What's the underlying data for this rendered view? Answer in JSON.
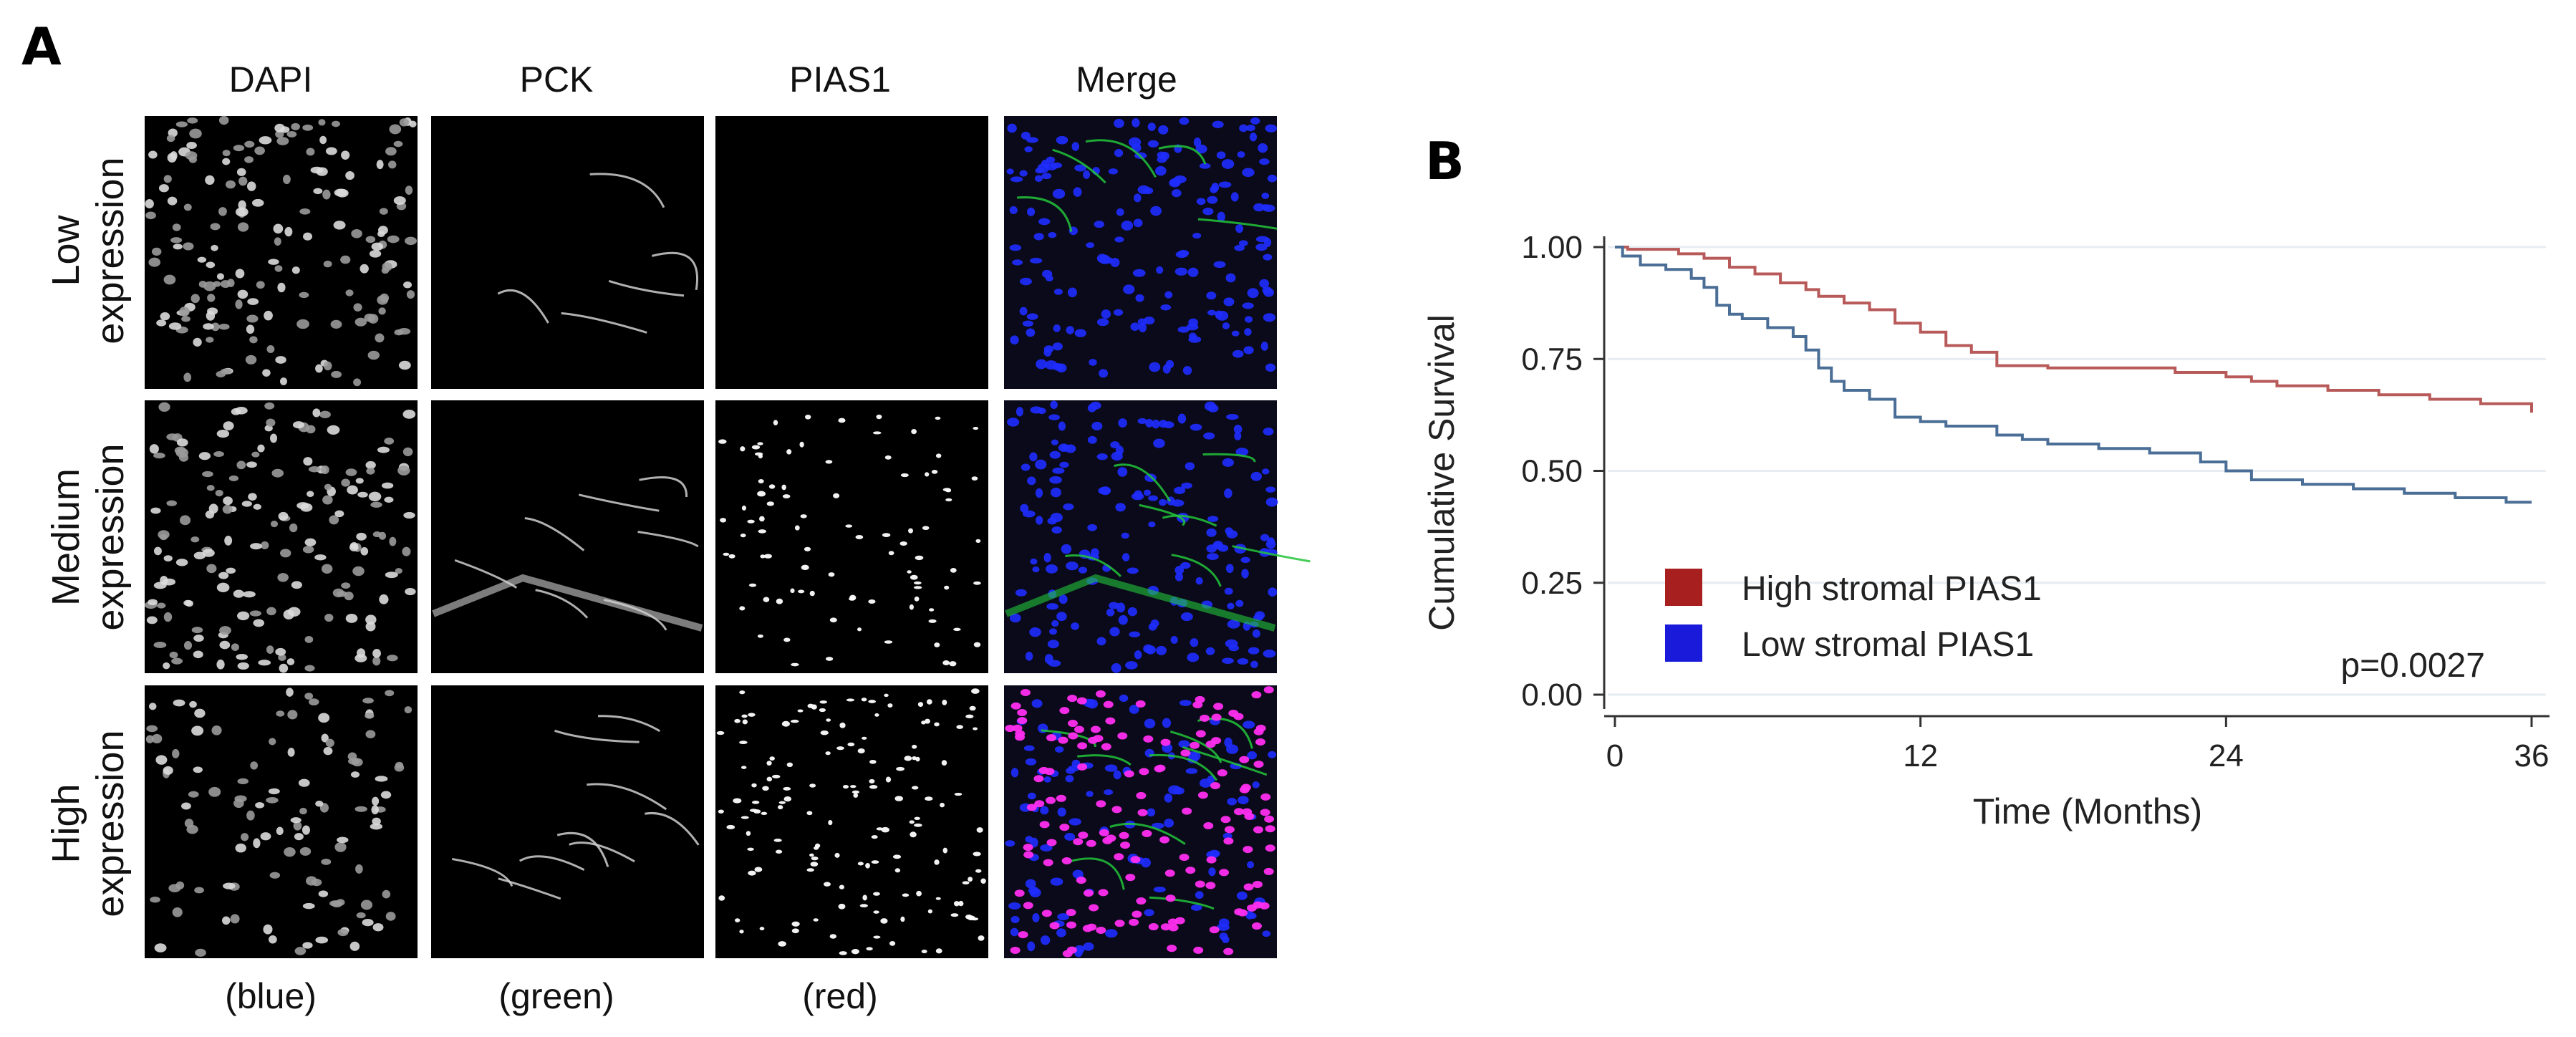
{
  "panel_a": {
    "letter": "A",
    "columns": [
      {
        "label": "DAPI",
        "channel": "(blue)"
      },
      {
        "label": "PCK",
        "channel": "(green)"
      },
      {
        "label": "PIAS1",
        "channel": "(red)"
      },
      {
        "label": "Merge",
        "channel": ""
      }
    ],
    "rows": [
      {
        "line1": "Low",
        "line2": "expression"
      },
      {
        "line1": "Medium",
        "line2": "expression"
      },
      {
        "line1": "High",
        "line2": "expression"
      }
    ],
    "colors": {
      "dapi": "#1f2cff",
      "pck": "#22c43a",
      "pias1": "#ff2ef0",
      "tile_bg": "#000000"
    }
  },
  "panel_b": {
    "letter": "B"
  },
  "chart_data": {
    "type": "line",
    "title": "",
    "xlabel": "Time (Months)",
    "ylabel": "Cumulative Survival",
    "xlim": [
      0,
      36
    ],
    "ylim": [
      0,
      1.0
    ],
    "x_ticks": [
      "0",
      "12",
      "24",
      "36"
    ],
    "y_ticks": [
      "0.00",
      "0.25",
      "0.50",
      "0.75",
      "1.00"
    ],
    "grid": true,
    "legend_position": "bottom-left",
    "annotation": "p=0.0027",
    "series": [
      {
        "name": "High stromal PIAS1",
        "color": "#b85a5a",
        "legend_color": "#a81f1f",
        "x": [
          0,
          0.5,
          2.5,
          3.5,
          4.5,
          5.5,
          6.5,
          7.5,
          8,
          9,
          10,
          11,
          12,
          13,
          14,
          15,
          17,
          20,
          22,
          24,
          25,
          26,
          28,
          30,
          32,
          34,
          36
        ],
        "y": [
          1.0,
          0.995,
          0.985,
          0.975,
          0.955,
          0.94,
          0.92,
          0.905,
          0.89,
          0.875,
          0.86,
          0.83,
          0.81,
          0.78,
          0.765,
          0.735,
          0.73,
          0.73,
          0.72,
          0.71,
          0.7,
          0.69,
          0.68,
          0.67,
          0.66,
          0.65,
          0.63
        ]
      },
      {
        "name": "Low stromal PIAS1",
        "color": "#4a6e96",
        "legend_color": "#1a1adb",
        "x": [
          0,
          0.3,
          1,
          2,
          3,
          3.5,
          4,
          4.5,
          5,
          6,
          7,
          7.5,
          8,
          8.5,
          9,
          10,
          11,
          12,
          13,
          15,
          16,
          17,
          19,
          21,
          23,
          24,
          25,
          27,
          29,
          31,
          33,
          35,
          36
        ],
        "y": [
          1.0,
          0.98,
          0.96,
          0.95,
          0.93,
          0.91,
          0.87,
          0.85,
          0.84,
          0.82,
          0.8,
          0.77,
          0.73,
          0.7,
          0.68,
          0.66,
          0.62,
          0.61,
          0.6,
          0.58,
          0.57,
          0.56,
          0.55,
          0.54,
          0.52,
          0.5,
          0.48,
          0.47,
          0.46,
          0.45,
          0.44,
          0.43,
          0.43
        ]
      }
    ]
  }
}
